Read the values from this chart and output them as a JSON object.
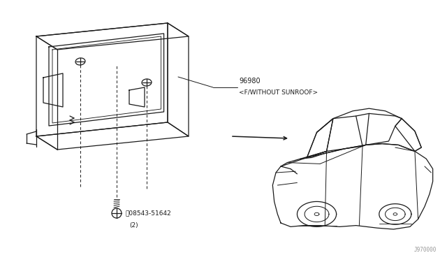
{
  "bg_color": "#ffffff",
  "line_color": "#1a1a1a",
  "part_number_1": "96980",
  "part_label_1": "<F/WITHOUT SUNROOF>",
  "part_number_2": "08543-51642",
  "part_label_2": "(2)",
  "watermark": "J970000",
  "figsize": [
    6.4,
    3.72
  ],
  "dpi": 100
}
